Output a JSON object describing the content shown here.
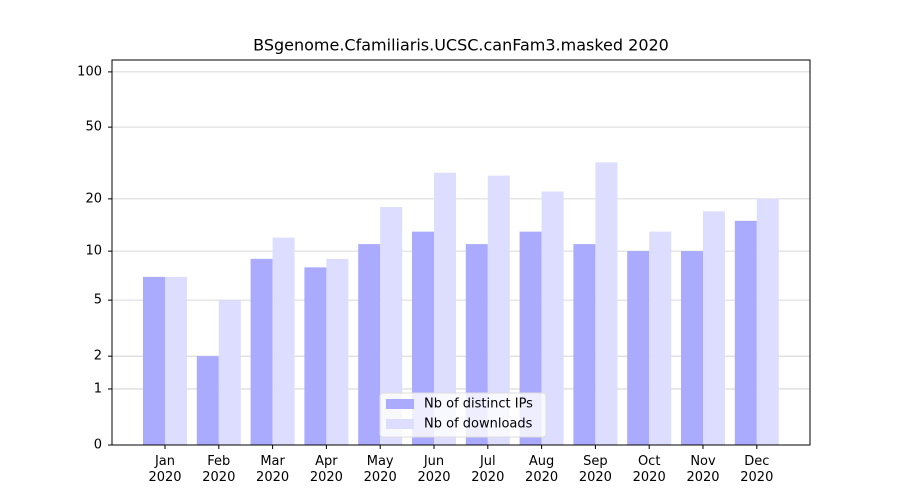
{
  "chart_data": {
    "type": "bar",
    "title": "BSgenome.Cfamiliaris.UCSC.canFam3.masked 2020",
    "categories": [
      "Jan\n2020",
      "Feb\n2020",
      "Mar\n2020",
      "Apr\n2020",
      "May\n2020",
      "Jun\n2020",
      "Jul\n2020",
      "Aug\n2020",
      "Sep\n2020",
      "Oct\n2020",
      "Nov\n2020",
      "Dec\n2020"
    ],
    "series": [
      {
        "name": "Nb of distinct IPs",
        "color": "#aaaaff",
        "values": [
          7,
          2,
          9,
          8,
          11,
          13,
          11,
          13,
          11,
          10,
          10,
          15
        ]
      },
      {
        "name": "Nb of downloads",
        "color": "#ddddff",
        "values": [
          7,
          5,
          12,
          9,
          18,
          28,
          27,
          22,
          32,
          13,
          17,
          20
        ]
      }
    ],
    "y_scale": "log1p",
    "ylim": [
      0,
      116
    ],
    "yticks": [
      0,
      1,
      2,
      5,
      10,
      20,
      50,
      100
    ],
    "grid": true,
    "legend": "lower center"
  }
}
